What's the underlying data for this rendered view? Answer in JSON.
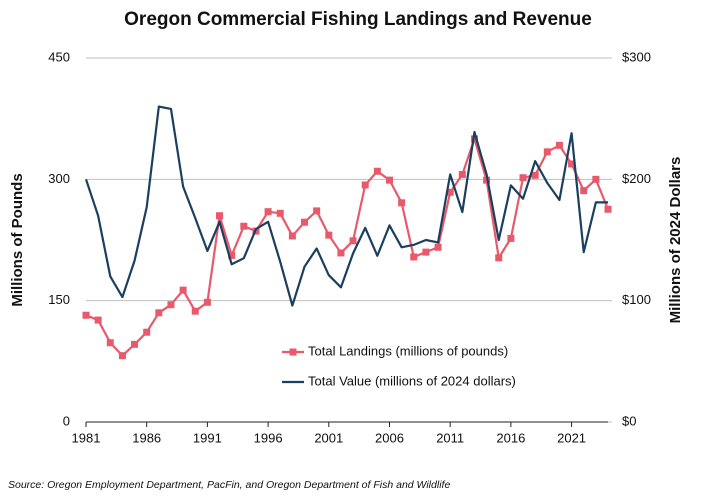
{
  "chart_data": {
    "type": "line",
    "title": "Oregon Commercial Fishing Landings and Revenue",
    "ylabel": "Millions of Pounds",
    "y2label": "Millions of 2024 Dollars",
    "source": "Source: Oregon Employment Department, PacFin, and Oregon Department of Fish and Wildlife",
    "x": [
      1981,
      1982,
      1983,
      1984,
      1985,
      1986,
      1987,
      1988,
      1989,
      1990,
      1991,
      1992,
      1993,
      1994,
      1995,
      1996,
      1997,
      1998,
      1999,
      2000,
      2001,
      2002,
      2003,
      2004,
      2005,
      2006,
      2007,
      2008,
      2009,
      2010,
      2011,
      2012,
      2013,
      2014,
      2015,
      2016,
      2017,
      2018,
      2019,
      2020,
      2021,
      2022,
      2023,
      2024
    ],
    "xlim": [
      1981,
      2024
    ],
    "xticks": [
      1981,
      1986,
      1991,
      1996,
      2001,
      2006,
      2011,
      2016,
      2021
    ],
    "ylim": [
      0,
      450
    ],
    "yticks": [
      0,
      150,
      300,
      450
    ],
    "y2lim": [
      0,
      300
    ],
    "y2ticks": [
      {
        "value": 0,
        "label": "$0"
      },
      {
        "value": 100,
        "label": "$100"
      },
      {
        "value": 200,
        "label": "$200"
      },
      {
        "value": 300,
        "label": "$300"
      }
    ],
    "grid": true,
    "series": [
      {
        "name": "Total Landings (millions of pounds)",
        "color": "#e8596b",
        "marker": "square",
        "values": [
          132,
          126,
          98,
          82,
          96,
          111,
          135,
          145,
          163,
          137,
          148,
          255,
          206,
          242,
          236,
          260,
          258,
          230,
          247,
          261,
          231,
          209,
          224,
          293,
          310,
          299,
          271,
          204,
          210,
          216,
          284,
          306,
          350,
          299,
          203,
          227,
          302,
          305,
          334,
          342,
          319,
          286,
          300,
          263
        ]
      },
      {
        "name": "Total Value (millions of 2024 dollars)",
        "color": "#1b3f5e",
        "axis": "y2",
        "values": [
          200,
          170,
          120,
          103,
          133,
          177,
          260,
          258,
          194,
          168,
          141,
          165,
          130,
          135,
          159,
          165,
          132,
          96,
          128,
          143,
          121,
          111,
          139,
          160,
          137,
          162,
          144,
          146,
          150,
          148,
          204,
          173,
          239,
          204,
          150,
          195,
          184,
          215,
          197,
          183,
          238,
          140,
          181,
          181
        ]
      }
    ]
  }
}
